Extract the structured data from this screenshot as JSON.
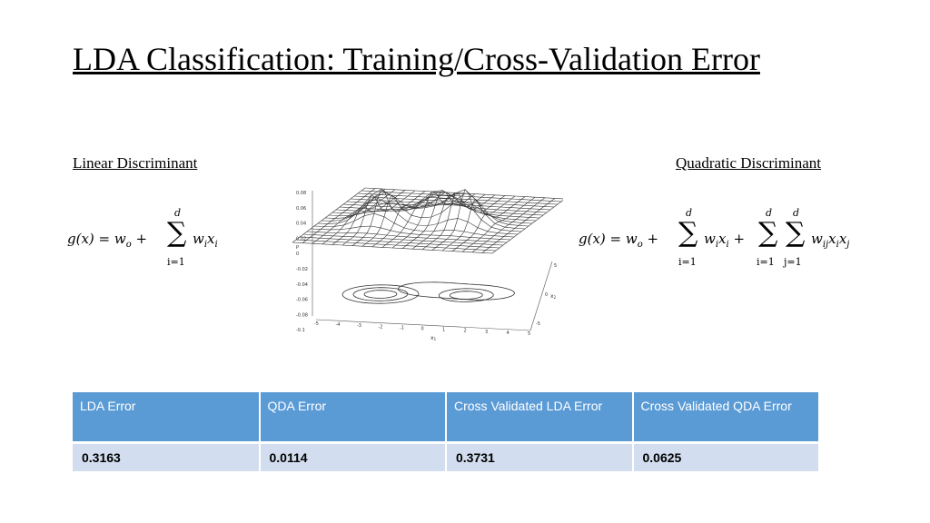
{
  "title": "LDA Classification:  Training/Cross-Validation Error",
  "linear": {
    "label": "Linear Discriminant",
    "lhs": "g(x) = w",
    "lhs_sub": "o",
    "plus": "+",
    "sum_top": "d",
    "sum_bottom": "i=1",
    "term": "w",
    "term_sub_i": "i",
    "term_x": "x",
    "term_sub_i2": "i"
  },
  "quadratic": {
    "label": "Quadratic Discriminant",
    "lhs": "g(x) = w",
    "lhs_sub": "o",
    "sum1_top": "d",
    "sum1_bottom": "i=1",
    "sum2_top": "d",
    "sum2_bottom": "i=1",
    "sum3_top": "d",
    "sum3_bottom": "j=1",
    "term3": "w",
    "term3_sub": "ij",
    "term3_x1": "x",
    "term3_x1_sub": "i",
    "term3_x2": "x",
    "term3_x2_sub": "j"
  },
  "plot": {
    "z_ticks": [
      "0.08",
      "0.06",
      "0.04",
      "0.02",
      "0",
      "-0.02",
      "-0.04",
      "-0.06",
      "-0.08",
      "-0.1"
    ],
    "x_ticks": [
      "-5",
      "-4",
      "-3",
      "-2",
      "-1",
      "0",
      "1",
      "2",
      "3",
      "4",
      "5"
    ],
    "y_ticks": [
      "5",
      "0",
      "-5"
    ],
    "x_axis_label": "x",
    "x_axis_sub": "1",
    "y_axis_label": "x",
    "y_axis_sub": "2",
    "z_axis_label": "P"
  },
  "table": {
    "headers": [
      "LDA Error",
      "QDA Error",
      "Cross Validated LDA Error",
      "Cross Validated QDA Error"
    ],
    "values": [
      "0.3163",
      "0.0114",
      "0.3731",
      "0.0625"
    ]
  }
}
